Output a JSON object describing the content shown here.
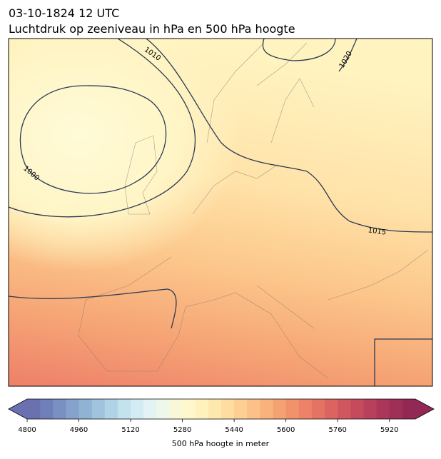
{
  "title": "03-10-1824 12 UTC",
  "subtitle": "Luchtdruk op zeeniveau in hPa en 500 hPa hoogte",
  "contour_labels": [
    1010,
    1020,
    1000,
    1015
  ],
  "colorbar": {
    "label": "500 hPa hoogte in meter",
    "range": [
      4800,
      6000
    ],
    "ticks": [
      4800,
      4960,
      5120,
      5280,
      5440,
      5600,
      5760,
      5920
    ],
    "colors": [
      "#6a70b0",
      "#6f7fb9",
      "#7990c2",
      "#84a2cb",
      "#90b3d4",
      "#a0c4dd",
      "#b0d4e6",
      "#c2e2ee",
      "#d3ecf3",
      "#e3f2f5",
      "#eef7ea",
      "#f8f8d8",
      "#fff8cc",
      "#fff2bd",
      "#ffe8ae",
      "#ffdda0",
      "#fdcf92",
      "#fcc186",
      "#f9b27c",
      "#f5a272",
      "#f1926b",
      "#ec8267",
      "#e57363",
      "#dc6460",
      "#d1575e",
      "#c54b5c",
      "#b8405b",
      "#aa3659",
      "#9e2f57",
      "#922854"
    ]
  }
}
